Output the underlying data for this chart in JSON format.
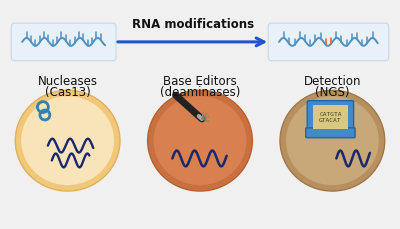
{
  "bg_color": "#f0f0f0",
  "title": "RNA modifications",
  "arrow_color": "#2255cc",
  "box_color": "#e8f0f8",
  "box_edge_color": "#c8d8e8",
  "circle1_outer": "#f0c878",
  "circle1_inner": "#f8e4b8",
  "circle2_outer": "#c87040",
  "circle2_inner": "#d88050",
  "circle3_outer": "#b89060",
  "circle3_inner": "#c8a878",
  "label1_line1": "Nucleases",
  "label1_line2": "(Cas13)",
  "label2_line1": "Base Editors",
  "label2_line2": "(deaminases)",
  "label3_line1": "Detection",
  "label3_line2": "(NGS)",
  "rna_color": "#5090c0",
  "rna_mod_color": "#e06020",
  "strand_color": "#1a2870",
  "scissors_color": "#3080b0",
  "pencil_dark": "#222222",
  "pencil_tip": "#888888",
  "laptop_body": "#4488cc",
  "laptop_screen": "#d8c880",
  "laptop_text_color": "#444422",
  "laptop_text1": "CATGTA",
  "laptop_text2": "GTACAT",
  "title_fontsize": 8.5,
  "label_fontsize": 8.5
}
